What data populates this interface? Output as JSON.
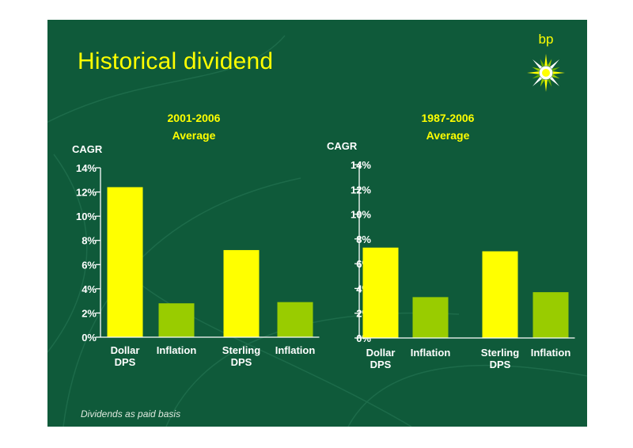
{
  "slide": {
    "title": "Historical dividend",
    "logo_text": "bp",
    "footnote": "Dividends as paid basis",
    "background_color": "#0f5a3a",
    "accent_yellow": "#ffff00",
    "accent_green": "#99cc00"
  },
  "chart_data": [
    {
      "type": "bar",
      "title": "2001-2006\nAverage",
      "ylabel": "CAGR",
      "categories": [
        "Dollar\nDPS",
        "Inflation",
        "Sterling\nDPS",
        "Inflation"
      ],
      "values": [
        12.4,
        2.8,
        7.2,
        2.9
      ],
      "colors": [
        "#ffff00",
        "#99cc00",
        "#ffff00",
        "#99cc00"
      ],
      "ylim": [
        0,
        14
      ],
      "yticks": [
        "0%",
        "2%",
        "4%",
        "6%",
        "8%",
        "10%",
        "12%",
        "14%"
      ],
      "grid": false,
      "legend": "none"
    },
    {
      "type": "bar",
      "title": "1987-2006\nAverage",
      "ylabel": "CAGR",
      "categories": [
        "Dollar\nDPS",
        "Inflation",
        "Sterling\nDPS",
        "Inflation"
      ],
      "values": [
        7.3,
        3.3,
        7.0,
        3.7
      ],
      "colors": [
        "#ffff00",
        "#99cc00",
        "#ffff00",
        "#99cc00"
      ],
      "ylim": [
        0,
        14
      ],
      "yticks": [
        "0%",
        "2%",
        "4%",
        "6%",
        "8%",
        "10%",
        "12%",
        "14%"
      ],
      "grid": false,
      "legend": "none"
    }
  ]
}
